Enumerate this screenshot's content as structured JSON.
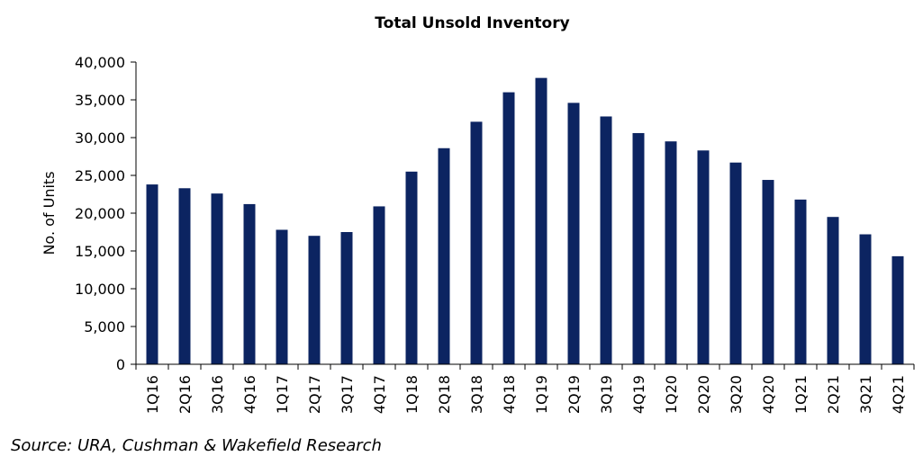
{
  "chart_data": {
    "type": "bar",
    "title": "Total Unsold Inventory",
    "ylabel": "No. of Units",
    "xlabel": "",
    "ylim": [
      0,
      40000
    ],
    "yticks": [
      0,
      5000,
      10000,
      15000,
      20000,
      25000,
      30000,
      35000,
      40000
    ],
    "ytick_labels": [
      "0",
      "5,000",
      "10,000",
      "15,000",
      "20,000",
      "25,000",
      "30,000",
      "35,000",
      "40,000"
    ],
    "grid": false,
    "bar_color": "#0c2461",
    "categories": [
      "1Q16",
      "2Q16",
      "3Q16",
      "4Q16",
      "1Q17",
      "2Q17",
      "3Q17",
      "4Q17",
      "1Q18",
      "2Q18",
      "3Q18",
      "4Q18",
      "1Q19",
      "2Q19",
      "3Q19",
      "4Q19",
      "1Q20",
      "2Q20",
      "3Q20",
      "4Q20",
      "1Q21",
      "2Q21",
      "3Q21",
      "4Q21"
    ],
    "values": [
      23800,
      23300,
      22600,
      21200,
      17800,
      17000,
      17500,
      20900,
      25500,
      28600,
      32100,
      36000,
      37900,
      34600,
      32800,
      30600,
      29500,
      28300,
      26700,
      24400,
      21800,
      19500,
      17200,
      14300
    ]
  },
  "source": "Source: URA, Cushman & Wakefield Research"
}
